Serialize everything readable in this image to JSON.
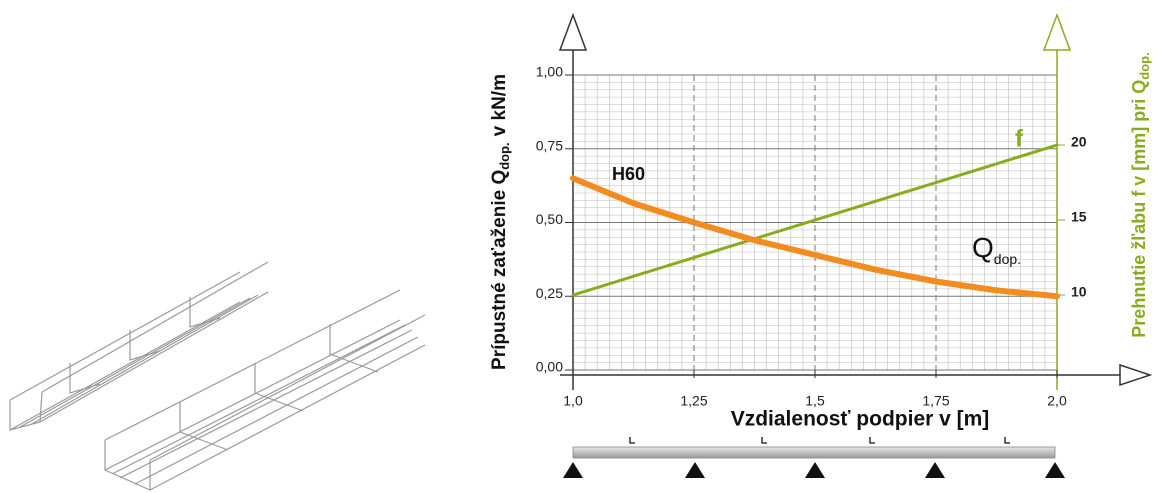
{
  "chart_data": {
    "type": "line",
    "xlabel": "Vzdialenosť podpier v [m]",
    "ylabel": {
      "main": "Prípustné zaťaženie Q",
      "sub": "dop.",
      "unit": "v kN/m"
    },
    "y2label": {
      "main": "Prehnutie žľabu f v [mm] pri Q",
      "sub": "dop."
    },
    "annotation": "H60",
    "x": [
      1,
      1.125,
      1.25,
      1.375,
      1.5,
      1.625,
      1.75,
      1.875,
      2
    ],
    "xlim": [
      1,
      2
    ],
    "xticks": [
      {
        "value": 1,
        "label": "1,0"
      },
      {
        "value": 1.25,
        "label": "1,25"
      },
      {
        "value": 1.5,
        "label": "1,5"
      },
      {
        "value": 1.75,
        "label": "1,75"
      },
      {
        "value": 2,
        "label": "2,0"
      }
    ],
    "ylim": [
      0,
      1
    ],
    "yticks": [
      {
        "value": 0,
        "label": "0,00"
      },
      {
        "value": 0.25,
        "label": "0,25"
      },
      {
        "value": 0.5,
        "label": "0,50"
      },
      {
        "value": 0.75,
        "label": "0,75"
      },
      {
        "value": 1,
        "label": "1,00"
      }
    ],
    "y2lim": [
      5,
      24.67
    ],
    "y2ticks": [
      10,
      15,
      20
    ],
    "grid": true,
    "series": [
      {
        "name": "Q",
        "name_sub": "dop.",
        "color": "#f28c1e",
        "values": [
          0.65,
          0.565,
          0.5,
          0.44,
          0.39,
          0.34,
          0.3,
          0.27,
          0.25
        ]
      },
      {
        "name": "f",
        "color": "#8aab1e",
        "axis": "y2",
        "values": [
          10,
          11.25,
          12.5,
          13.75,
          15,
          16.25,
          17.5,
          18.75,
          20
        ]
      }
    ]
  }
}
